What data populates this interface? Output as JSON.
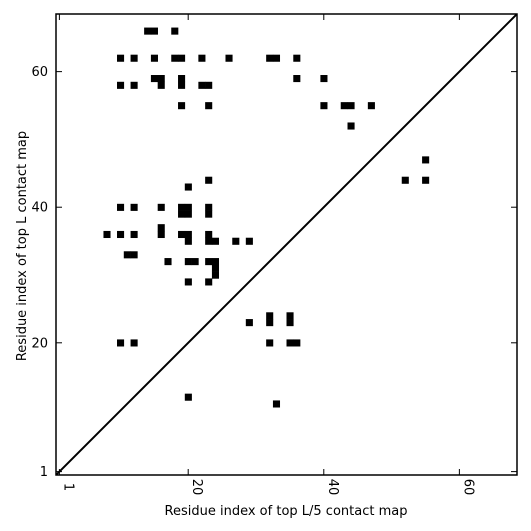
{
  "chart_data": {
    "type": "heatmap",
    "title": "",
    "xlabel": "Residue index of top L/5 contact map",
    "ylabel": "Residue index of top L contact map",
    "xlim": [
      0.5,
      68.5
    ],
    "ylim": [
      0.5,
      68.5
    ],
    "x_ticks": [
      1,
      20,
      40,
      60
    ],
    "y_ticks": [
      1,
      20,
      40,
      60
    ],
    "x_tick_labels": [
      "1",
      "20",
      "40",
      "60"
    ],
    "y_tick_labels": [
      "1",
      "20",
      "40",
      "60"
    ],
    "x_tick_rotation": 90,
    "diagonal_line": true,
    "grid": false,
    "cell_color": "#000000",
    "line_color": "#000000",
    "background": "#ffffff",
    "cells": [
      [
        14,
        66
      ],
      [
        15,
        66
      ],
      [
        18,
        66
      ],
      [
        10,
        62
      ],
      [
        12,
        62
      ],
      [
        15,
        62
      ],
      [
        18,
        62
      ],
      [
        19,
        62
      ],
      [
        22,
        62
      ],
      [
        26,
        62
      ],
      [
        32,
        62
      ],
      [
        33,
        62
      ],
      [
        36,
        62
      ],
      [
        15,
        59
      ],
      [
        16,
        59
      ],
      [
        19,
        59
      ],
      [
        36,
        59
      ],
      [
        40,
        59
      ],
      [
        10,
        58
      ],
      [
        12,
        58
      ],
      [
        16,
        58
      ],
      [
        19,
        58
      ],
      [
        22,
        58
      ],
      [
        23,
        58
      ],
      [
        19,
        55
      ],
      [
        23,
        55
      ],
      [
        40,
        55
      ],
      [
        43,
        55
      ],
      [
        44,
        55
      ],
      [
        47,
        55
      ],
      [
        44,
        52
      ],
      [
        55,
        47
      ],
      [
        52,
        44
      ],
      [
        55,
        44
      ],
      [
        23,
        44
      ],
      [
        20,
        43
      ],
      [
        10,
        40
      ],
      [
        12,
        40
      ],
      [
        16,
        40
      ],
      [
        19,
        40
      ],
      [
        20,
        40
      ],
      [
        23,
        40
      ],
      [
        19,
        39
      ],
      [
        20,
        39
      ],
      [
        23,
        39
      ],
      [
        16,
        37
      ],
      [
        8,
        36
      ],
      [
        10,
        36
      ],
      [
        12,
        36
      ],
      [
        16,
        36
      ],
      [
        19,
        36
      ],
      [
        20,
        36
      ],
      [
        23,
        36
      ],
      [
        20,
        35
      ],
      [
        23,
        35
      ],
      [
        24,
        35
      ],
      [
        27,
        35
      ],
      [
        29,
        35
      ],
      [
        11,
        33
      ],
      [
        12,
        33
      ],
      [
        17,
        32
      ],
      [
        20,
        32
      ],
      [
        21,
        32
      ],
      [
        23,
        32
      ],
      [
        24,
        32
      ],
      [
        24,
        31
      ],
      [
        24,
        30
      ],
      [
        20,
        29
      ],
      [
        23,
        29
      ],
      [
        32,
        24
      ],
      [
        35,
        24
      ],
      [
        29,
        23
      ],
      [
        32,
        23
      ],
      [
        35,
        23
      ],
      [
        10,
        20
      ],
      [
        12,
        20
      ],
      [
        32,
        20
      ],
      [
        35,
        20
      ],
      [
        36,
        20
      ],
      [
        20,
        12
      ],
      [
        33,
        11
      ]
    ]
  }
}
